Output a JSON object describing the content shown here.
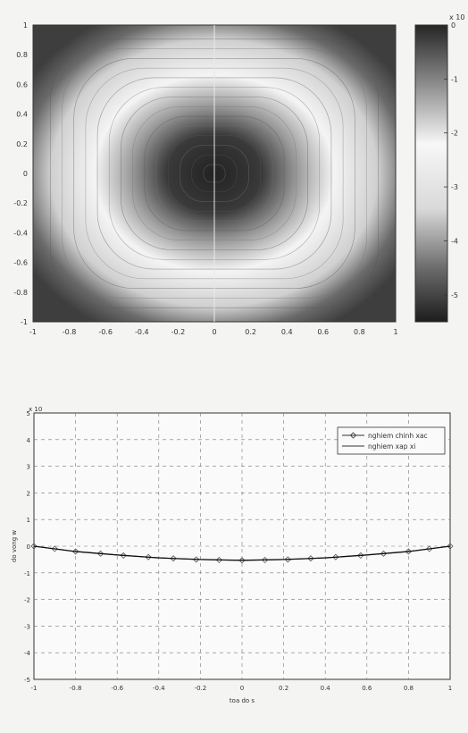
{
  "chart_data": [
    {
      "type": "heatmap",
      "title": "",
      "xlabel": "",
      "ylabel": "",
      "xlim": [
        -1,
        1
      ],
      "ylim": [
        -1,
        1
      ],
      "x_ticks": [
        "-1",
        "-0.8",
        "-0.6",
        "-0.4",
        "-0.2",
        "0",
        "0.2",
        "0.4",
        "0.6",
        "0.8",
        "1"
      ],
      "y_ticks": [
        "1",
        "0.8",
        "0.6",
        "0.4",
        "0.2",
        "0",
        "-0.2",
        "-0.4",
        "-0.6",
        "-0.8",
        "-1"
      ],
      "colorbar": {
        "exponent_label": "x 10",
        "range": [
          -5.5,
          0
        ],
        "ticks": [
          "0",
          "-1",
          "-2",
          "-3",
          "-4",
          "-5"
        ],
        "colors": [
          "#1f1f1f",
          "#8a8a8a",
          "#ffffff",
          "#7a7a7a",
          "#2a2a2a"
        ]
      },
      "description_values": {
        "center_level": -5.5,
        "ring_level": -2.8,
        "edge_level": 0
      }
    },
    {
      "type": "line",
      "title": "",
      "xlabel": "toa do s",
      "ylabel": "do vong w",
      "y_exponent_label": "x 10",
      "xlim": [
        -1,
        1
      ],
      "ylim": [
        -5,
        5
      ],
      "grid": true,
      "legend_position": "top-right",
      "x_ticks": [
        "-1",
        "-0.8",
        "-0.6",
        "-0.4",
        "-0.2",
        "0",
        "0.2",
        "0.4",
        "0.6",
        "0.8",
        "1"
      ],
      "y_ticks": [
        "5",
        "4",
        "3",
        "2",
        "1",
        "0",
        "-1",
        "-2",
        "-3",
        "-4",
        "-5"
      ],
      "series": [
        {
          "name": "nghiem chinh xac",
          "marker": "diamond",
          "x": [
            -1,
            -0.9,
            -0.8,
            -0.68,
            -0.57,
            -0.45,
            -0.33,
            -0.22,
            -0.11,
            0,
            0.11,
            0.22,
            0.33,
            0.45,
            0.57,
            0.68,
            0.8,
            0.9,
            1
          ],
          "y": [
            0,
            -0.1,
            -0.2,
            -0.28,
            -0.35,
            -0.41,
            -0.46,
            -0.5,
            -0.52,
            -0.53,
            -0.52,
            -0.5,
            -0.46,
            -0.41,
            -0.35,
            -0.28,
            -0.2,
            -0.1,
            0
          ]
        },
        {
          "name": "nghiem xap xi",
          "marker": "none",
          "x": [
            -1,
            -0.8,
            -0.6,
            -0.4,
            -0.2,
            0,
            0.2,
            0.4,
            0.6,
            0.8,
            1
          ],
          "y": [
            0,
            -0.2,
            -0.33,
            -0.44,
            -0.5,
            -0.53,
            -0.5,
            -0.44,
            -0.33,
            -0.2,
            0
          ]
        }
      ]
    }
  ]
}
